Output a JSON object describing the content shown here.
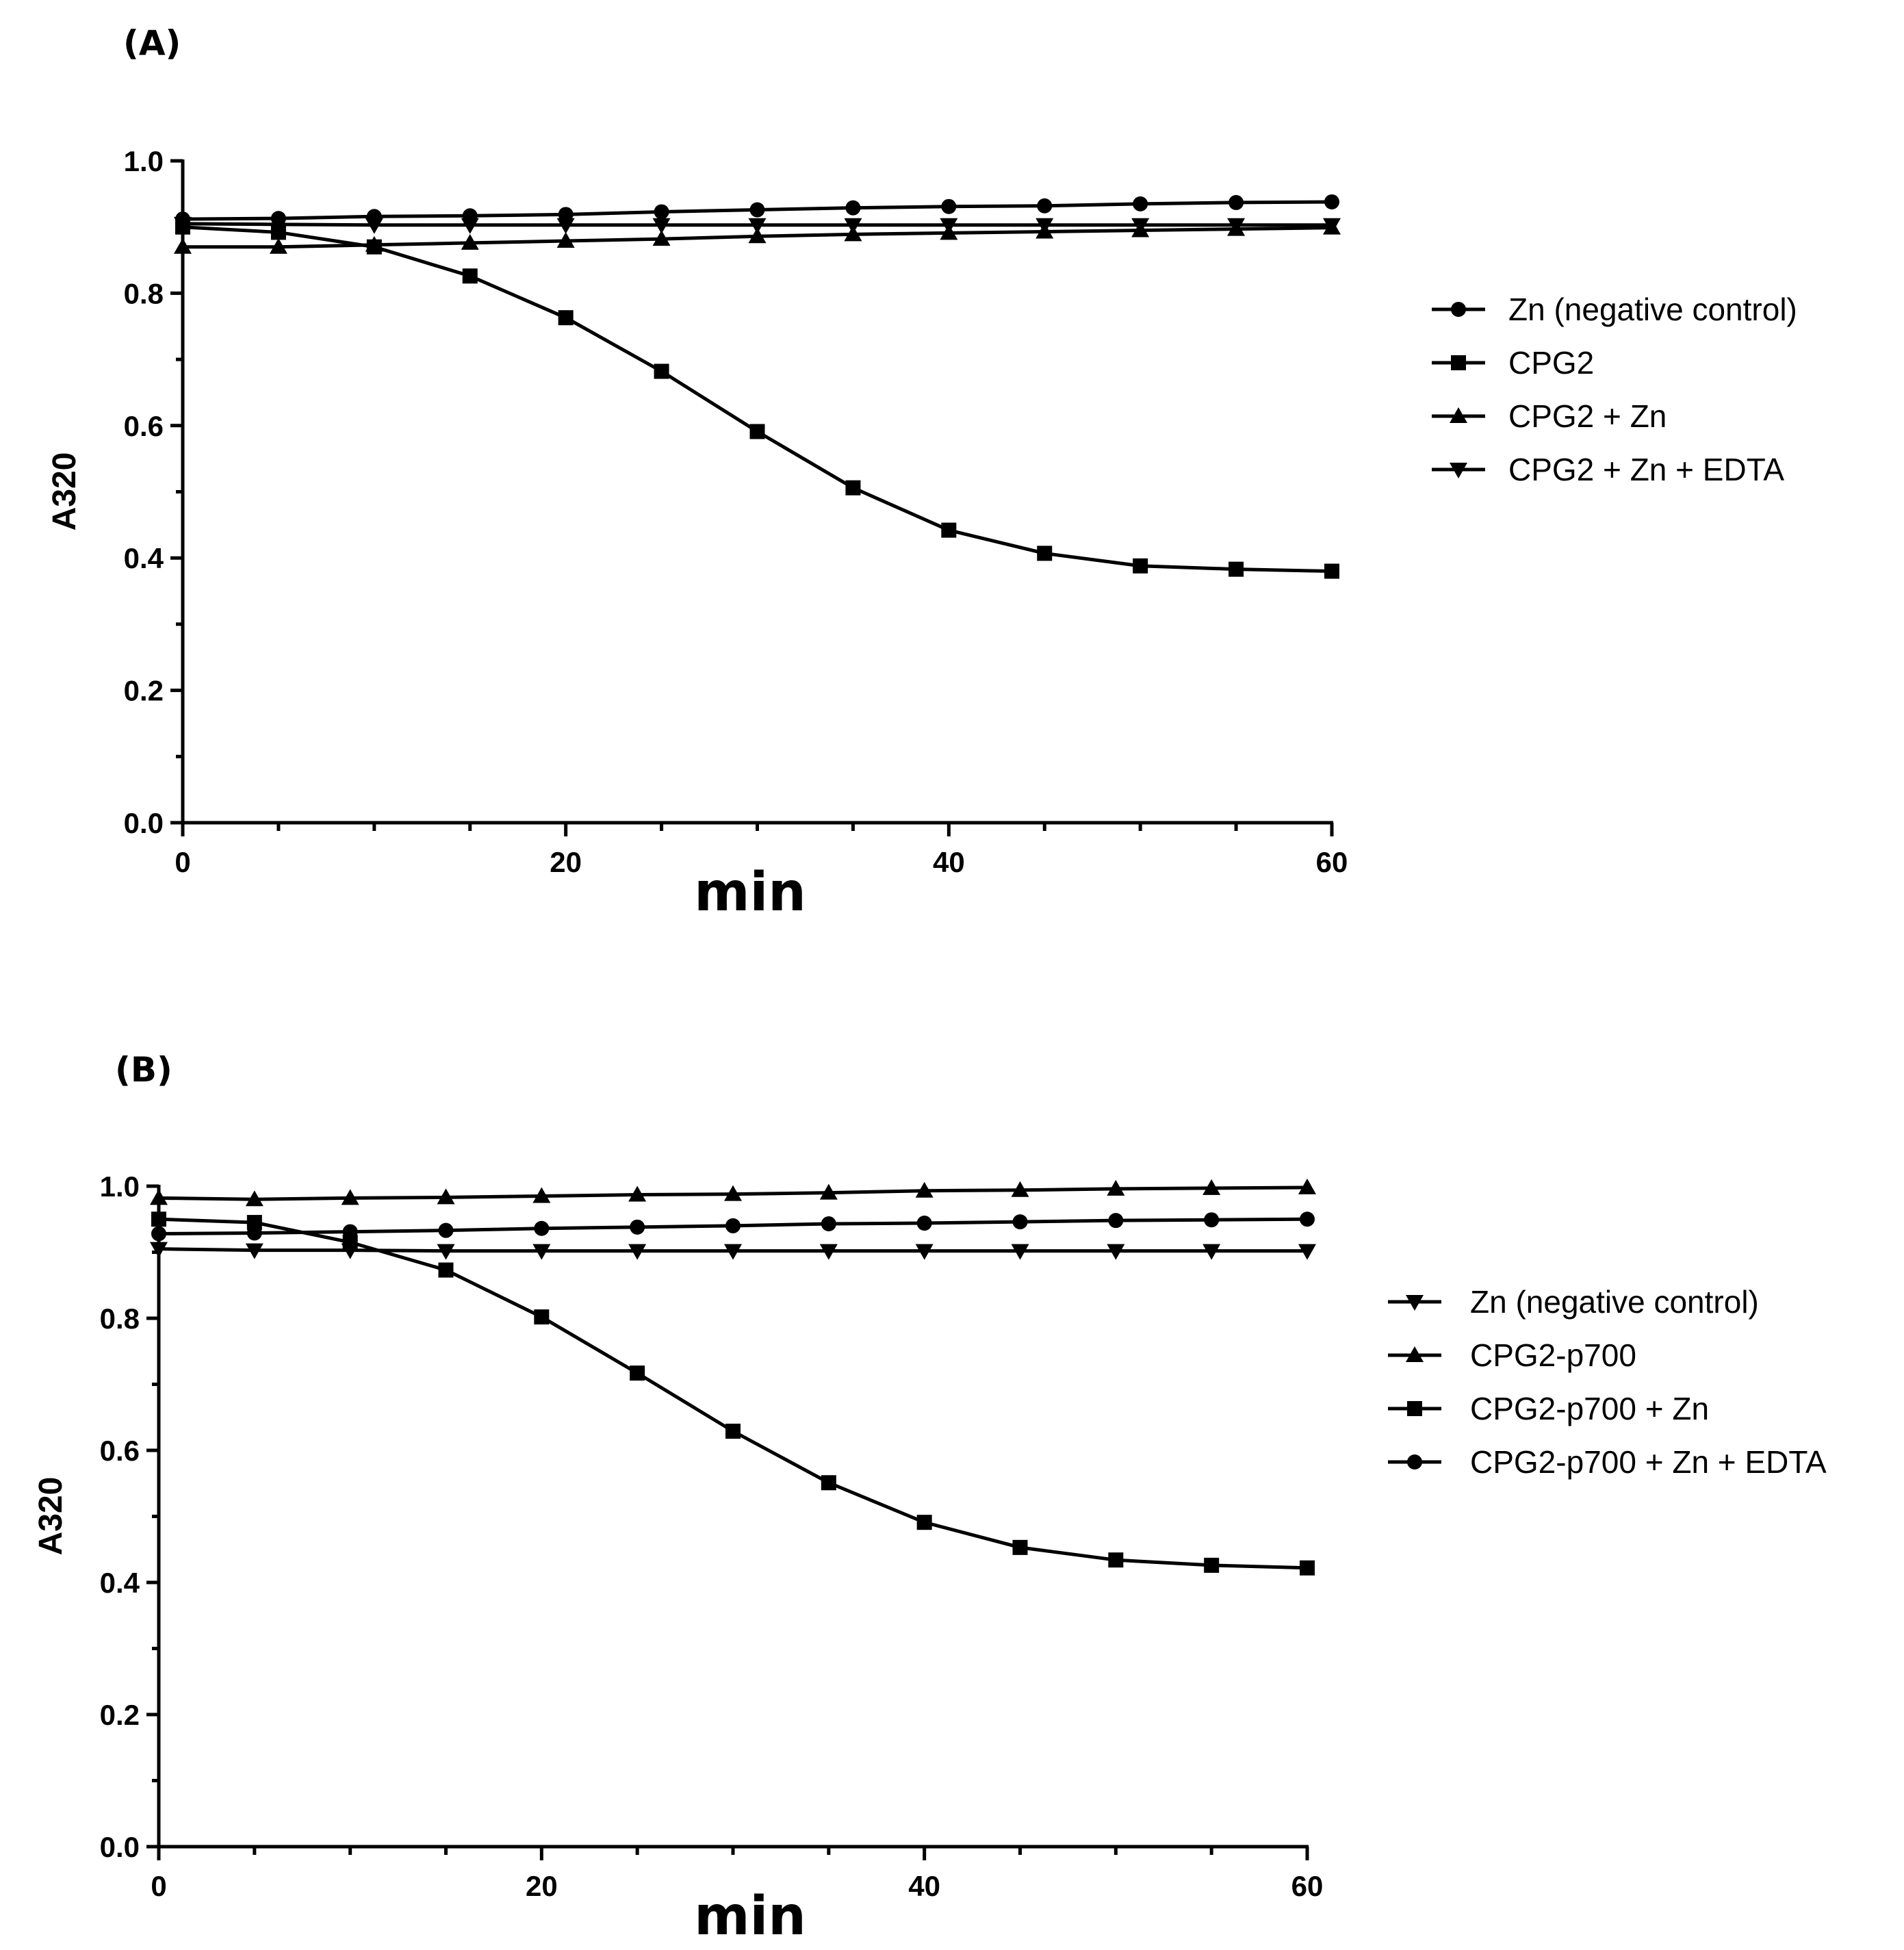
{
  "chart_data": [
    {
      "type": "line",
      "panel_label": "(A)",
      "xlabel": "min",
      "ylabel": "A320",
      "xlim": [
        0,
        60
      ],
      "ylim": [
        0,
        1.0
      ],
      "x_ticks": [
        "0",
        "20",
        "40",
        "60"
      ],
      "y_ticks": [
        "0.0",
        "0.2",
        "0.4",
        "0.6",
        "0.8",
        "1.0"
      ],
      "x": [
        0,
        5,
        10,
        15,
        20,
        25,
        30,
        35,
        40,
        45,
        50,
        55,
        60
      ],
      "legend_position": "right",
      "series": [
        {
          "name": "Zn (negative control)",
          "marker": "circle",
          "values": [
            0.912,
            0.913,
            0.916,
            0.917,
            0.919,
            0.923,
            0.926,
            0.929,
            0.931,
            0.932,
            0.935,
            0.937,
            0.938
          ]
        },
        {
          "name": "CPG2",
          "marker": "square",
          "values": [
            0.9,
            0.892,
            0.87,
            0.826,
            0.763,
            0.682,
            0.591,
            0.506,
            0.442,
            0.407,
            0.388,
            0.383,
            0.38
          ]
        },
        {
          "name": "CPG2 + Zn",
          "marker": "triangle-up",
          "values": [
            0.87,
            0.87,
            0.873,
            0.876,
            0.879,
            0.882,
            0.886,
            0.889,
            0.891,
            0.893,
            0.895,
            0.897,
            0.899
          ]
        },
        {
          "name": "CPG2 + Zn + EDTA",
          "marker": "triangle-down",
          "values": [
            0.905,
            0.904,
            0.903,
            0.903,
            0.903,
            0.903,
            0.903,
            0.903,
            0.903,
            0.903,
            0.903,
            0.903,
            0.903
          ]
        }
      ]
    },
    {
      "type": "line",
      "panel_label": "(B)",
      "xlabel": "min",
      "ylabel": "A320",
      "xlim": [
        0,
        60
      ],
      "ylim": [
        0,
        1.0
      ],
      "x_ticks": [
        "0",
        "20",
        "40",
        "60"
      ],
      "y_ticks": [
        "0.0",
        "0.2",
        "0.4",
        "0.6",
        "0.8",
        "1.0"
      ],
      "x": [
        0,
        5,
        10,
        15,
        20,
        25,
        30,
        35,
        40,
        45,
        50,
        55,
        60
      ],
      "legend_position": "right",
      "series": [
        {
          "name": "Zn (negative control)",
          "marker": "triangle-down",
          "values": [
            0.905,
            0.903,
            0.903,
            0.902,
            0.902,
            0.902,
            0.902,
            0.902,
            0.902,
            0.902,
            0.902,
            0.902,
            0.902
          ]
        },
        {
          "name": "CPG2-p700",
          "marker": "triangle-up",
          "values": [
            0.982,
            0.98,
            0.982,
            0.983,
            0.985,
            0.987,
            0.988,
            0.99,
            0.993,
            0.994,
            0.996,
            0.997,
            0.998
          ]
        },
        {
          "name": "CPG2-p700 + Zn",
          "marker": "square",
          "values": [
            0.95,
            0.945,
            0.915,
            0.873,
            0.802,
            0.717,
            0.629,
            0.551,
            0.491,
            0.453,
            0.434,
            0.426,
            0.422
          ]
        },
        {
          "name": "CPG2-p700 + Zn + EDTA",
          "marker": "circle",
          "values": [
            0.928,
            0.929,
            0.931,
            0.933,
            0.936,
            0.938,
            0.94,
            0.943,
            0.944,
            0.946,
            0.948,
            0.949,
            0.95
          ]
        }
      ]
    }
  ]
}
